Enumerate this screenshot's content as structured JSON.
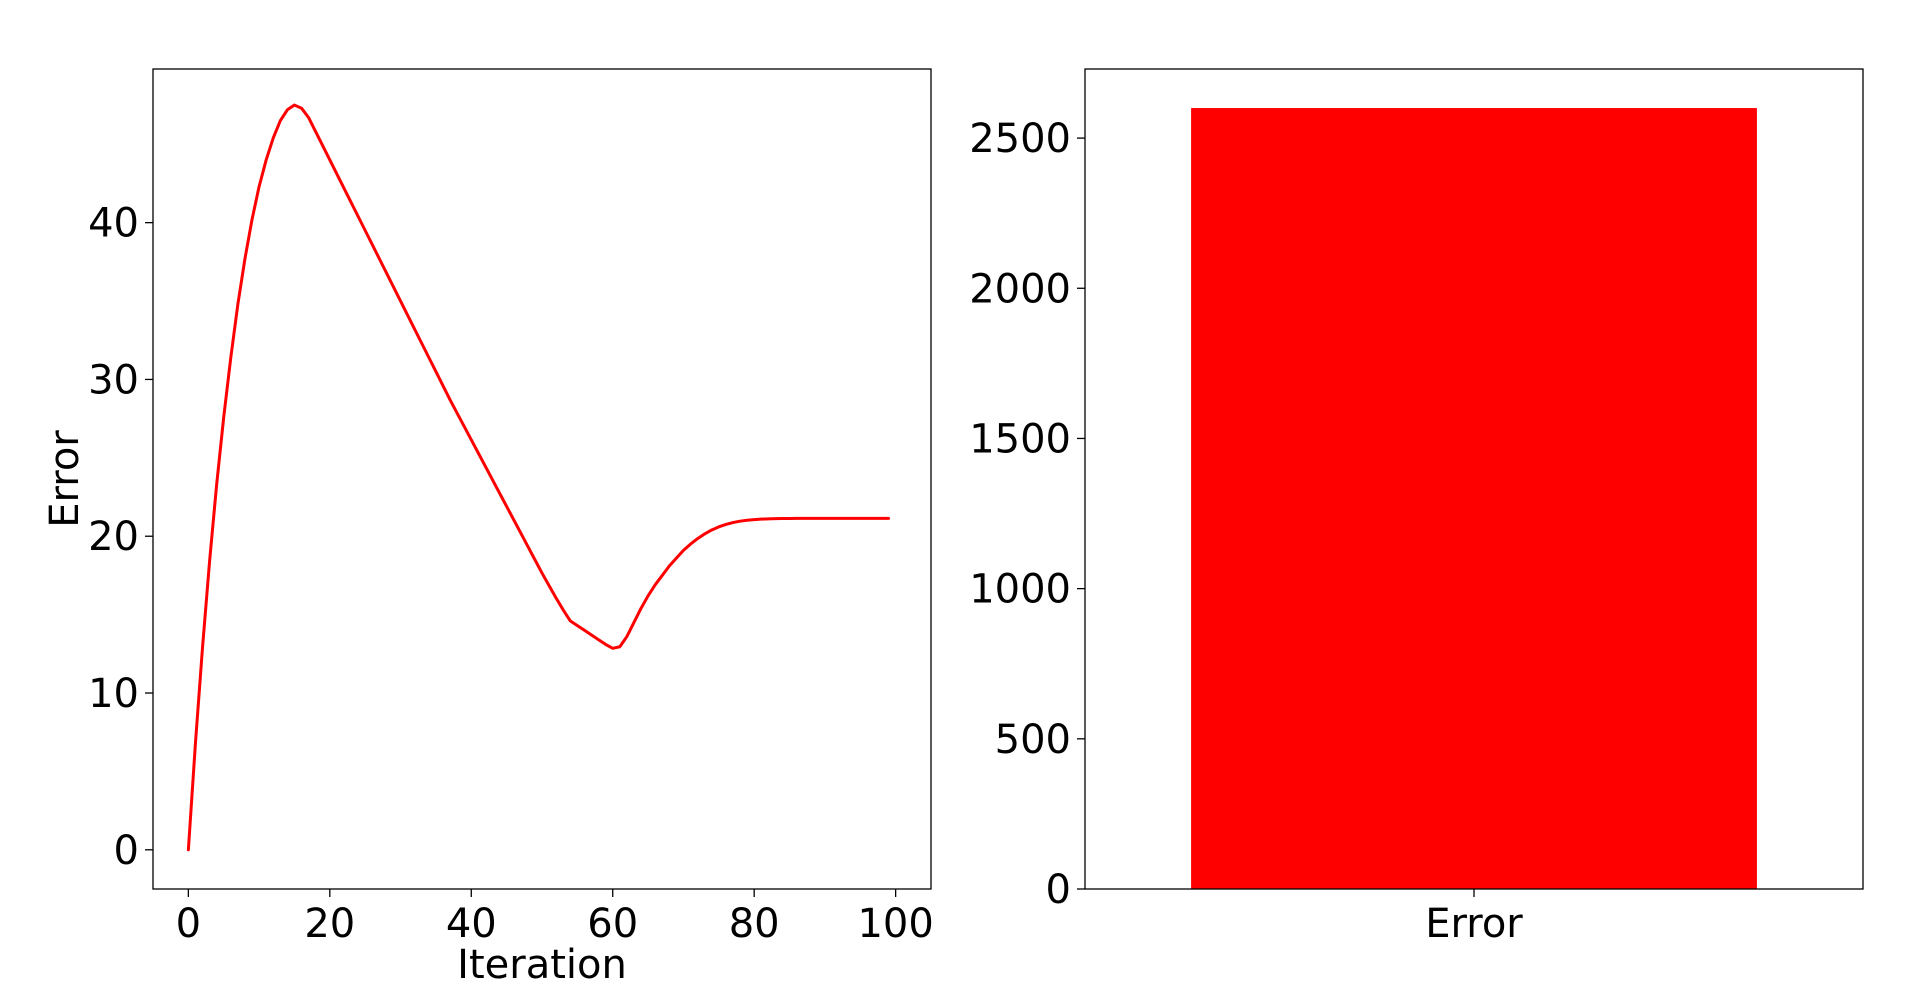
{
  "chart_data": [
    {
      "type": "line",
      "title": "",
      "xlabel": "Iteration",
      "ylabel": "Error",
      "xlim": [
        -5,
        105
      ],
      "ylim": [
        -2.5,
        49.8
      ],
      "xticks": [
        0,
        20,
        40,
        60,
        80,
        100
      ],
      "xtick_labels": [
        "0",
        "20",
        "40",
        "60",
        "80",
        "100"
      ],
      "yticks": [
        0,
        10,
        20,
        30,
        40
      ],
      "ytick_labels": [
        "0",
        "10",
        "20",
        "30",
        "40"
      ],
      "grid": false,
      "series": [
        {
          "color": "#ff0000",
          "x": [
            0,
            1,
            2,
            3,
            4,
            5,
            6,
            7,
            8,
            9,
            10,
            11,
            12,
            13,
            14,
            15,
            16,
            17,
            18,
            19,
            20,
            21,
            22,
            23,
            24,
            25,
            26,
            27,
            28,
            29,
            30,
            31,
            32,
            33,
            34,
            35,
            36,
            37,
            38,
            39,
            40,
            41,
            42,
            43,
            44,
            45,
            46,
            47,
            48,
            49,
            50,
            51,
            52,
            53,
            54,
            55,
            56,
            57,
            58,
            59,
            60,
            61,
            62,
            63,
            64,
            65,
            66,
            67,
            68,
            69,
            70,
            71,
            72,
            73,
            74,
            75,
            76,
            77,
            78,
            79,
            80,
            81,
            82,
            83,
            84,
            85,
            86,
            87,
            88,
            89,
            90,
            91,
            92,
            93,
            94,
            95,
            96,
            97,
            98,
            99
          ],
          "values": [
            0,
            6.8,
            12.9,
            18.4,
            23.3,
            27.6,
            31.4,
            34.8,
            37.7,
            40.2,
            42.3,
            44.0,
            45.4,
            46.5,
            47.2,
            47.5,
            47.3,
            46.7,
            45.8,
            44.9,
            44.0,
            43.1,
            42.2,
            41.3,
            40.4,
            39.5,
            38.6,
            37.7,
            36.8,
            35.9,
            35.0,
            34.1,
            33.2,
            32.3,
            31.4,
            30.5,
            29.6,
            28.7,
            27.85,
            27.0,
            26.15,
            25.3,
            24.45,
            23.6,
            22.75,
            21.9,
            21.05,
            20.2,
            19.35,
            18.5,
            17.65,
            16.85,
            16.05,
            15.3,
            14.6,
            14.3,
            14.0,
            13.7,
            13.4,
            13.1,
            12.85,
            12.95,
            13.6,
            14.5,
            15.4,
            16.2,
            16.9,
            17.5,
            18.1,
            18.6,
            19.1,
            19.5,
            19.85,
            20.15,
            20.4,
            20.6,
            20.75,
            20.87,
            20.96,
            21.02,
            21.06,
            21.09,
            21.11,
            21.12,
            21.13,
            21.13,
            21.14,
            21.14,
            21.14,
            21.14,
            21.14,
            21.14,
            21.14,
            21.14,
            21.14,
            21.14,
            21.14,
            21.14,
            21.14,
            21.14
          ]
        }
      ]
    },
    {
      "type": "bar",
      "title": "",
      "xlabel": "",
      "ylabel": "",
      "categories": [
        "Error"
      ],
      "values": [
        2600
      ],
      "color": "#ff0000",
      "ylim": [
        0,
        2730
      ],
      "yticks": [
        0,
        500,
        1000,
        1500,
        2000,
        2500
      ],
      "ytick_labels": [
        "0",
        "500",
        "1000",
        "1500",
        "2000",
        "2500"
      ],
      "grid": false
    }
  ]
}
